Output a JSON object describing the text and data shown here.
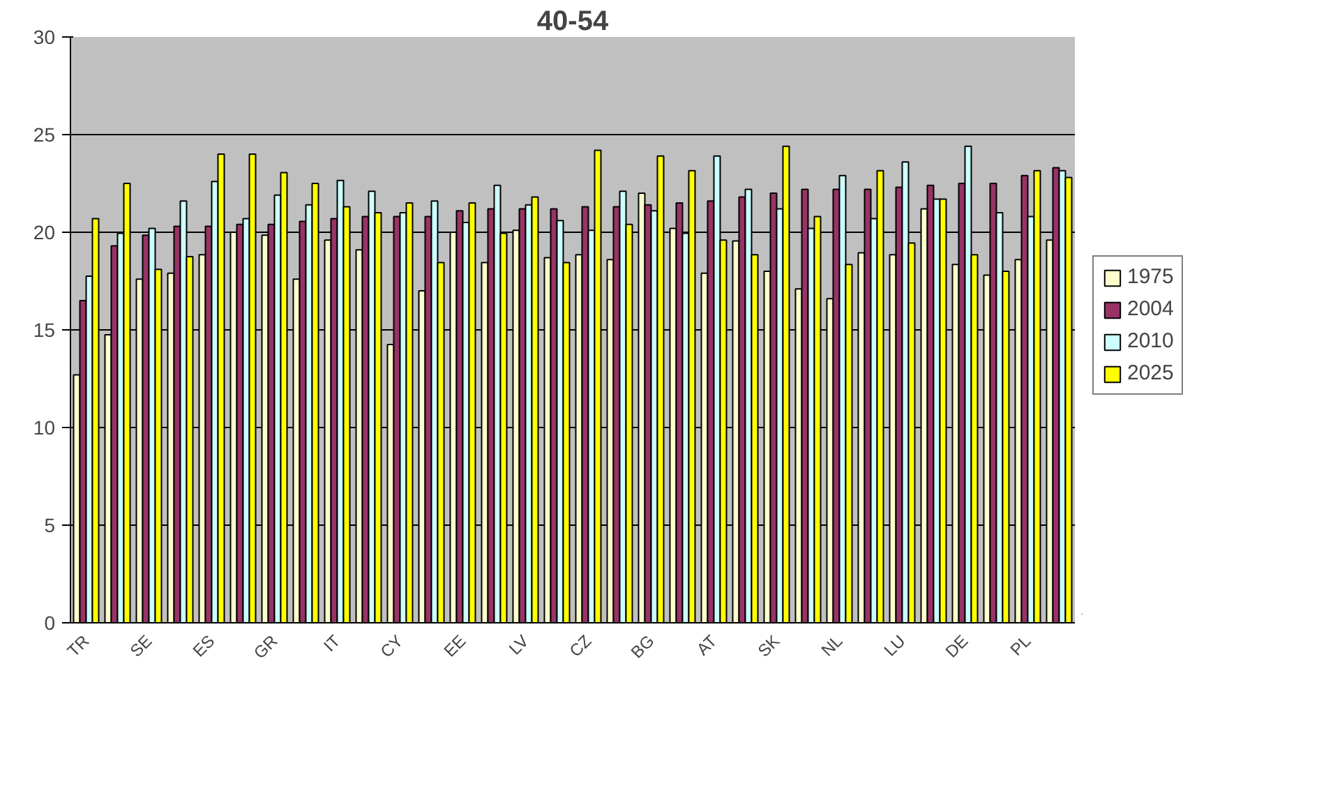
{
  "chart_data": {
    "type": "bar",
    "title": "40-54",
    "categories": [
      "TR",
      null,
      "SE",
      null,
      "ES",
      null,
      "GR",
      null,
      "IT",
      null,
      "CY",
      null,
      "EE",
      null,
      "LV",
      null,
      "CZ",
      null,
      "BG",
      null,
      "AT",
      null,
      "SK",
      null,
      "NL",
      null,
      "LU",
      null,
      "DE",
      null,
      "PL",
      null
    ],
    "series": [
      {
        "name": "1975",
        "color": "#ffffcc",
        "values": [
          12.7,
          14.75,
          17.6,
          17.9,
          18.85,
          20.0,
          19.85,
          17.6,
          19.6,
          19.1,
          14.25,
          17.0,
          20.0,
          18.45,
          20.1,
          18.7,
          18.85,
          18.6,
          22.0,
          20.2,
          17.9,
          19.55,
          18.0,
          17.1,
          16.6,
          18.95,
          18.85,
          21.2,
          18.35,
          17.8,
          18.6,
          19.6
        ]
      },
      {
        "name": "2004",
        "color": "#993366",
        "values": [
          16.5,
          19.3,
          19.85,
          20.3,
          20.3,
          20.4,
          20.4,
          20.55,
          20.7,
          20.8,
          20.8,
          20.8,
          21.1,
          21.2,
          21.2,
          21.2,
          21.3,
          21.3,
          21.4,
          21.5,
          21.6,
          21.8,
          22.0,
          22.2,
          22.2,
          22.2,
          22.3,
          22.4,
          22.5,
          22.5,
          22.9,
          23.3
        ]
      },
      {
        "name": "2010",
        "color": "#ccffff",
        "values": [
          17.75,
          19.95,
          20.2,
          21.6,
          22.6,
          20.7,
          21.9,
          21.4,
          22.65,
          22.1,
          21.0,
          21.6,
          20.5,
          22.4,
          21.4,
          20.6,
          20.1,
          22.1,
          21.1,
          19.95,
          23.9,
          22.2,
          21.2,
          20.2,
          22.9,
          20.7,
          23.6,
          21.7,
          24.4,
          21.0,
          20.8,
          23.15
        ]
      },
      {
        "name": "2025",
        "color": "#ffff00",
        "values": [
          20.7,
          22.5,
          18.1,
          18.75,
          24.0,
          24.0,
          23.05,
          22.5,
          21.3,
          21.0,
          21.5,
          18.45,
          21.5,
          19.95,
          21.8,
          18.45,
          24.2,
          20.4,
          23.9,
          23.15,
          19.6,
          18.85,
          24.4,
          20.8,
          18.35,
          23.15,
          19.45,
          21.7,
          18.85,
          18.0,
          23.15,
          22.8
        ]
      }
    ],
    "ylim": [
      0,
      30
    ],
    "yticks": [
      0,
      5,
      10,
      15,
      20,
      25,
      30
    ],
    "grid": "y",
    "legend": "right"
  }
}
